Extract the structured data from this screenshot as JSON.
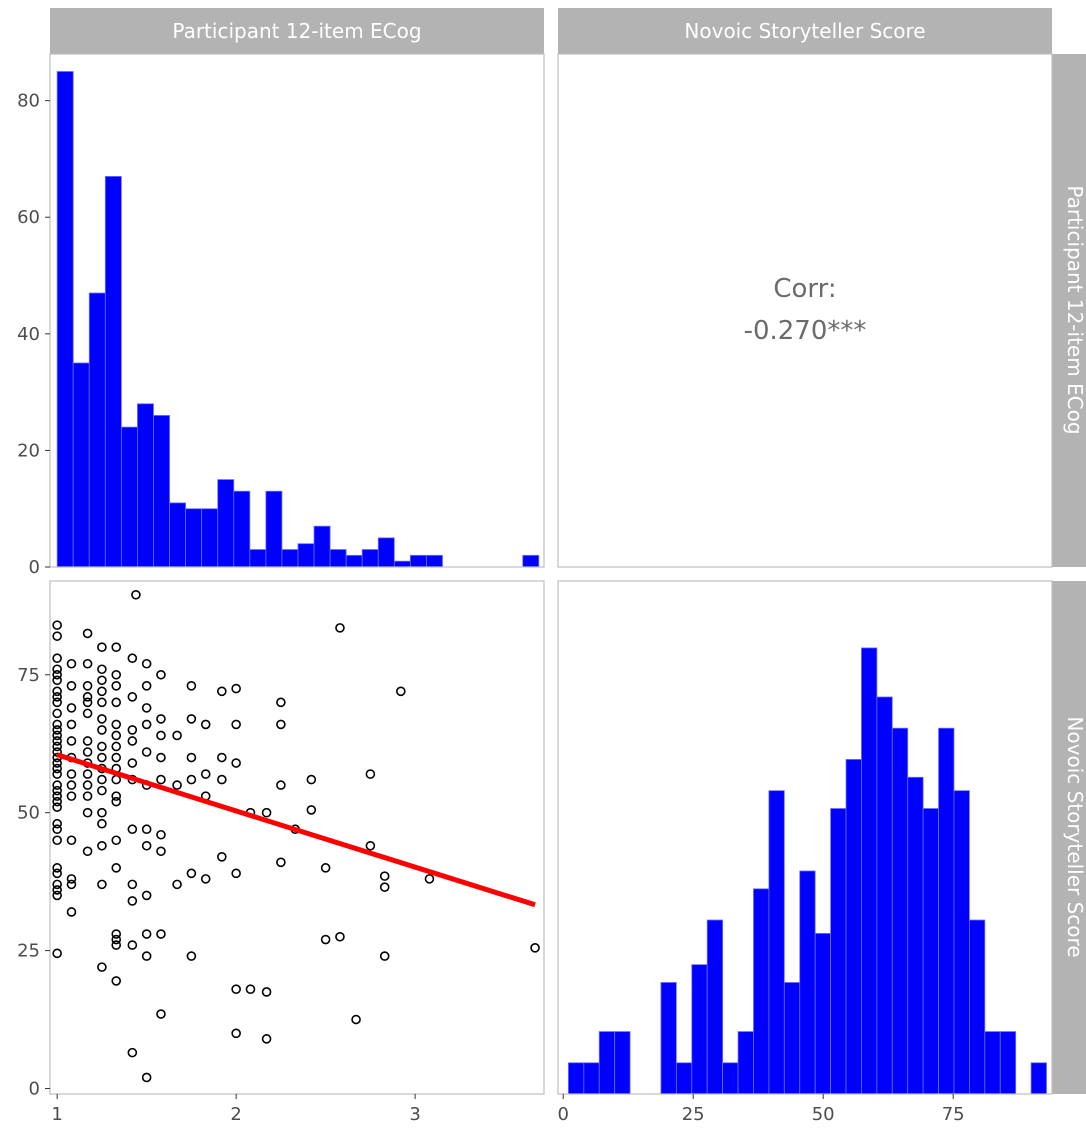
{
  "strips": {
    "top_left": "Participant 12-item ECog",
    "top_right": "Novoic Storyteller Score",
    "right_top": "Participant 12-item ECog",
    "right_bottom": "Novoic Storyteller Score"
  },
  "correlation": {
    "label": "Corr:",
    "value": "-0.270***"
  },
  "colors": {
    "bar_fill": "#0000ff",
    "bar_outline": "#6e6eff",
    "fit_line": "#ff0000",
    "strip_bg": "#b3b3b3",
    "panel_border": "#bfbfbf"
  },
  "chart_data": [
    {
      "type": "bar",
      "panel": "top-left histogram",
      "x_ticks": [
        "1",
        "2",
        "3"
      ],
      "y_ticks": [
        "0",
        "20",
        "40",
        "60",
        "80"
      ],
      "xlim": [
        0.96,
        3.72
      ],
      "ylim": [
        0,
        88
      ],
      "bin_width": 0.0897,
      "bin_start": 1.0,
      "values": [
        85,
        35,
        47,
        67,
        24,
        28,
        26,
        11,
        10,
        10,
        15,
        13,
        3,
        13,
        3,
        4,
        7,
        3,
        2,
        3,
        5,
        1,
        2,
        2,
        0,
        0,
        0,
        0,
        0,
        2
      ],
      "grid": false
    },
    {
      "type": "scatter",
      "panel": "bottom-left scatter with linear fit",
      "x_ticks": [
        "1",
        "2",
        "3"
      ],
      "y_ticks": [
        "0",
        "25",
        "50",
        "75"
      ],
      "xlim": [
        0.96,
        3.72
      ],
      "ylim": [
        -1,
        92
      ],
      "points": [
        [
          1,
          84
        ],
        [
          1,
          82
        ],
        [
          1,
          78
        ],
        [
          1,
          76
        ],
        [
          1,
          75
        ],
        [
          1,
          74
        ],
        [
          1,
          72
        ],
        [
          1,
          71
        ],
        [
          1,
          70
        ],
        [
          1,
          68
        ],
        [
          1,
          66
        ],
        [
          1,
          65
        ],
        [
          1,
          64
        ],
        [
          1,
          63
        ],
        [
          1,
          62
        ],
        [
          1,
          61
        ],
        [
          1,
          60
        ],
        [
          1,
          59
        ],
        [
          1,
          58
        ],
        [
          1,
          57
        ],
        [
          1,
          55
        ],
        [
          1,
          54
        ],
        [
          1,
          53
        ],
        [
          1,
          52
        ],
        [
          1,
          51
        ],
        [
          1,
          48
        ],
        [
          1,
          47
        ],
        [
          1,
          45
        ],
        [
          1,
          40
        ],
        [
          1,
          39
        ],
        [
          1,
          37
        ],
        [
          1,
          36
        ],
        [
          1,
          35
        ],
        [
          1,
          24.5
        ],
        [
          1.08,
          77
        ],
        [
          1.08,
          73
        ],
        [
          1.08,
          69
        ],
        [
          1.08,
          66
        ],
        [
          1.08,
          63
        ],
        [
          1.08,
          60
        ],
        [
          1.08,
          57
        ],
        [
          1.08,
          55
        ],
        [
          1.08,
          53
        ],
        [
          1.08,
          45
        ],
        [
          1.08,
          38
        ],
        [
          1.08,
          37
        ],
        [
          1.08,
          32
        ],
        [
          1.17,
          82.5
        ],
        [
          1.17,
          77
        ],
        [
          1.17,
          73
        ],
        [
          1.17,
          71
        ],
        [
          1.17,
          70
        ],
        [
          1.17,
          68
        ],
        [
          1.17,
          63
        ],
        [
          1.17,
          61
        ],
        [
          1.17,
          59
        ],
        [
          1.17,
          57
        ],
        [
          1.17,
          55
        ],
        [
          1.17,
          53
        ],
        [
          1.17,
          50
        ],
        [
          1.17,
          43
        ],
        [
          1.25,
          80
        ],
        [
          1.25,
          76
        ],
        [
          1.25,
          74
        ],
        [
          1.25,
          72
        ],
        [
          1.25,
          70
        ],
        [
          1.25,
          67
        ],
        [
          1.25,
          65
        ],
        [
          1.25,
          62
        ],
        [
          1.25,
          60
        ],
        [
          1.25,
          58
        ],
        [
          1.25,
          56
        ],
        [
          1.25,
          54
        ],
        [
          1.25,
          50
        ],
        [
          1.25,
          48
        ],
        [
          1.25,
          44
        ],
        [
          1.25,
          37
        ],
        [
          1.25,
          22
        ],
        [
          1.33,
          80
        ],
        [
          1.33,
          75
        ],
        [
          1.33,
          73
        ],
        [
          1.33,
          70
        ],
        [
          1.33,
          66
        ],
        [
          1.33,
          64
        ],
        [
          1.33,
          62
        ],
        [
          1.33,
          60
        ],
        [
          1.33,
          58
        ],
        [
          1.33,
          56
        ],
        [
          1.33,
          53
        ],
        [
          1.33,
          52
        ],
        [
          1.33,
          45
        ],
        [
          1.33,
          40
        ],
        [
          1.33,
          28
        ],
        [
          1.33,
          27
        ],
        [
          1.33,
          26
        ],
        [
          1.33,
          19.5
        ],
        [
          1.42,
          78
        ],
        [
          1.42,
          71
        ],
        [
          1.42,
          65
        ],
        [
          1.42,
          63
        ],
        [
          1.42,
          59
        ],
        [
          1.42,
          56
        ],
        [
          1.42,
          47
        ],
        [
          1.42,
          37
        ],
        [
          1.42,
          34
        ],
        [
          1.42,
          26
        ],
        [
          1.42,
          6.5
        ],
        [
          1.44,
          89.5
        ],
        [
          1.5,
          77
        ],
        [
          1.5,
          73
        ],
        [
          1.5,
          69
        ],
        [
          1.5,
          66
        ],
        [
          1.5,
          61
        ],
        [
          1.5,
          55
        ],
        [
          1.5,
          47
        ],
        [
          1.5,
          44
        ],
        [
          1.5,
          35
        ],
        [
          1.5,
          28
        ],
        [
          1.5,
          24
        ],
        [
          1.5,
          2
        ],
        [
          1.58,
          75
        ],
        [
          1.58,
          67
        ],
        [
          1.58,
          64
        ],
        [
          1.58,
          60
        ],
        [
          1.58,
          56
        ],
        [
          1.58,
          46
        ],
        [
          1.58,
          43
        ],
        [
          1.58,
          28
        ],
        [
          1.58,
          13.5
        ],
        [
          1.67,
          64
        ],
        [
          1.67,
          55
        ],
        [
          1.67,
          37
        ],
        [
          1.75,
          73
        ],
        [
          1.75,
          67
        ],
        [
          1.75,
          60
        ],
        [
          1.75,
          56
        ],
        [
          1.75,
          39
        ],
        [
          1.75,
          24
        ],
        [
          1.83,
          66
        ],
        [
          1.83,
          57
        ],
        [
          1.83,
          53
        ],
        [
          1.83,
          38
        ],
        [
          1.92,
          72
        ],
        [
          1.92,
          60
        ],
        [
          1.92,
          56
        ],
        [
          1.92,
          42
        ],
        [
          2,
          72.5
        ],
        [
          2,
          66
        ],
        [
          2,
          59
        ],
        [
          2,
          39
        ],
        [
          2,
          18
        ],
        [
          2,
          10
        ],
        [
          2.08,
          50
        ],
        [
          2.08,
          18
        ],
        [
          2.17,
          50
        ],
        [
          2.17,
          17.5
        ],
        [
          2.17,
          9
        ],
        [
          2.25,
          70
        ],
        [
          2.25,
          66
        ],
        [
          2.25,
          55
        ],
        [
          2.25,
          41
        ],
        [
          2.33,
          47
        ],
        [
          2.42,
          56
        ],
        [
          2.42,
          50.5
        ],
        [
          2.5,
          40
        ],
        [
          2.5,
          27
        ],
        [
          2.58,
          83.5
        ],
        [
          2.58,
          27.5
        ],
        [
          2.67,
          12.5
        ],
        [
          2.75,
          57
        ],
        [
          2.75,
          44
        ],
        [
          2.83,
          38.5
        ],
        [
          2.83,
          36.5
        ],
        [
          2.83,
          24
        ],
        [
          2.92,
          72
        ],
        [
          3.08,
          38
        ],
        [
          3.67,
          25.5
        ]
      ],
      "fit_line": {
        "x": [
          1,
          3.67
        ],
        "y": [
          60.5,
          33.3
        ]
      },
      "grid": false
    },
    {
      "type": "text",
      "panel": "top-right correlation",
      "text": "Corr: -0.270***"
    },
    {
      "type": "bar",
      "panel": "bottom-right histogram",
      "x_ticks": [
        "0",
        "25",
        "50",
        "75"
      ],
      "xlim": [
        -1,
        94
      ],
      "ylim": [
        0,
        1.15
      ],
      "bin_width": 2.966,
      "bin_start": 1.0,
      "values": [
        0.07,
        0.07,
        0.14,
        0.14,
        0,
        0,
        0.25,
        0.07,
        0.29,
        0.39,
        0.07,
        0.14,
        0.46,
        0.68,
        0.25,
        0.5,
        0.36,
        0.64,
        0.75,
        1.0,
        0.89,
        0.82,
        0.71,
        0.64,
        0.82,
        0.68,
        0.39,
        0.14,
        0.14,
        0,
        0.07
      ],
      "grid": false
    }
  ]
}
